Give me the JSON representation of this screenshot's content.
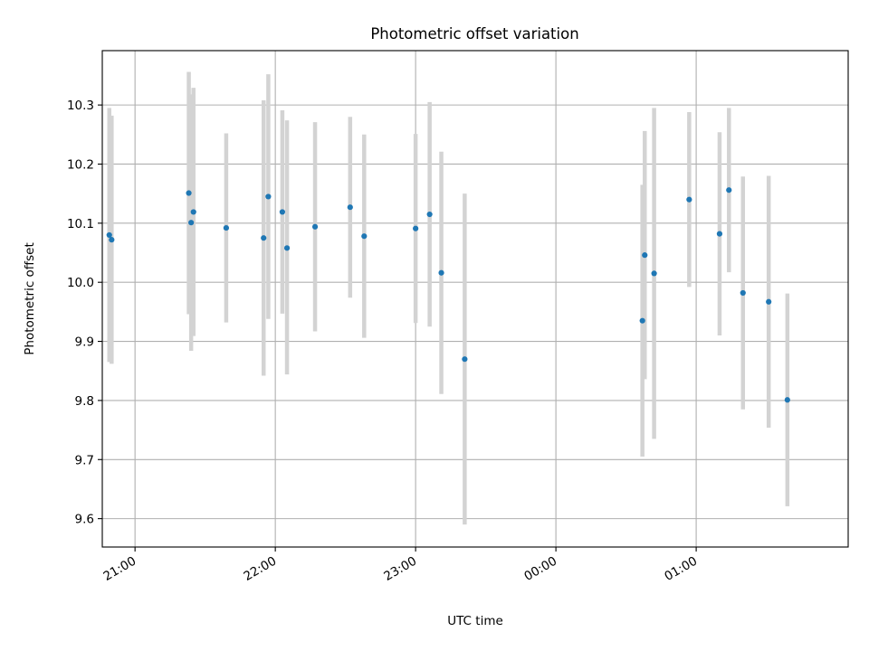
{
  "chart_data": {
    "type": "scatter",
    "title": "Photometric offset variation",
    "xlabel": "UTC time",
    "ylabel": "Photometric offset",
    "x_axis_kind": "time",
    "xlim": [
      "20:46",
      "26:05"
    ],
    "ylim": [
      9.552,
      10.392
    ],
    "grid": true,
    "legend": "none",
    "xticks": [
      {
        "value": "21:00",
        "label": "21:00"
      },
      {
        "value": "22:00",
        "label": "22:00"
      },
      {
        "value": "23:00",
        "label": "23:00"
      },
      {
        "value": "24:00",
        "label": "00:00"
      },
      {
        "value": "25:00",
        "label": "01:00"
      }
    ],
    "yticks": [
      {
        "value": 9.6,
        "label": "9.6"
      },
      {
        "value": 9.7,
        "label": "9.7"
      },
      {
        "value": 9.8,
        "label": "9.8"
      },
      {
        "value": 9.9,
        "label": "9.9"
      },
      {
        "value": 10.0,
        "label": "10.0"
      },
      {
        "value": 10.1,
        "label": "10.1"
      },
      {
        "value": 10.2,
        "label": "10.2"
      },
      {
        "value": 10.3,
        "label": "10.3"
      }
    ],
    "colors": {
      "point": "#1f77b4",
      "errorbar": "#d3d3d3",
      "grid": "#b0b0b0",
      "axes": "#000000"
    },
    "points": [
      {
        "time": "20:49",
        "y": 10.08,
        "err_low": 9.865,
        "err_high": 10.295
      },
      {
        "time": "20:50",
        "y": 10.072,
        "err_low": 9.862,
        "err_high": 10.282
      },
      {
        "time": "21:23",
        "y": 10.151,
        "err_low": 9.946,
        "err_high": 10.356
      },
      {
        "time": "21:24",
        "y": 10.101,
        "err_low": 9.884,
        "err_high": 10.318
      },
      {
        "time": "21:25",
        "y": 10.119,
        "err_low": 9.909,
        "err_high": 10.329
      },
      {
        "time": "21:39",
        "y": 10.092,
        "err_low": 9.932,
        "err_high": 10.252
      },
      {
        "time": "21:55",
        "y": 10.075,
        "err_low": 9.842,
        "err_high": 10.308
      },
      {
        "time": "21:57",
        "y": 10.145,
        "err_low": 9.938,
        "err_high": 10.352
      },
      {
        "time": "22:03",
        "y": 10.119,
        "err_low": 9.947,
        "err_high": 10.291
      },
      {
        "time": "22:05",
        "y": 10.058,
        "err_low": 9.844,
        "err_high": 10.274
      },
      {
        "time": "22:17",
        "y": 10.094,
        "err_low": 9.917,
        "err_high": 10.271
      },
      {
        "time": "22:32",
        "y": 10.127,
        "err_low": 9.974,
        "err_high": 10.28
      },
      {
        "time": "22:38",
        "y": 10.078,
        "err_low": 9.906,
        "err_high": 10.25
      },
      {
        "time": "23:00",
        "y": 10.091,
        "err_low": 9.931,
        "err_high": 10.251
      },
      {
        "time": "23:06",
        "y": 10.115,
        "err_low": 9.925,
        "err_high": 10.305
      },
      {
        "time": "23:11",
        "y": 10.016,
        "err_low": 9.811,
        "err_high": 10.221
      },
      {
        "time": "23:21",
        "y": 9.87,
        "err_low": 9.59,
        "err_high": 10.15
      },
      {
        "time": "24:37",
        "y": 9.935,
        "err_low": 9.705,
        "err_high": 10.165
      },
      {
        "time": "24:38",
        "y": 10.046,
        "err_low": 9.836,
        "err_high": 10.256
      },
      {
        "time": "24:42",
        "y": 10.015,
        "err_low": 9.735,
        "err_high": 10.295
      },
      {
        "time": "24:57",
        "y": 10.14,
        "err_low": 9.992,
        "err_high": 10.288
      },
      {
        "time": "25:10",
        "y": 10.082,
        "err_low": 9.91,
        "err_high": 10.254
      },
      {
        "time": "25:14",
        "y": 10.156,
        "err_low": 10.017,
        "err_high": 10.295
      },
      {
        "time": "25:20",
        "y": 9.982,
        "err_low": 9.785,
        "err_high": 10.179
      },
      {
        "time": "25:31",
        "y": 9.967,
        "err_low": 9.754,
        "err_high": 10.18
      },
      {
        "time": "25:39",
        "y": 9.801,
        "err_low": 9.621,
        "err_high": 9.981
      }
    ]
  }
}
